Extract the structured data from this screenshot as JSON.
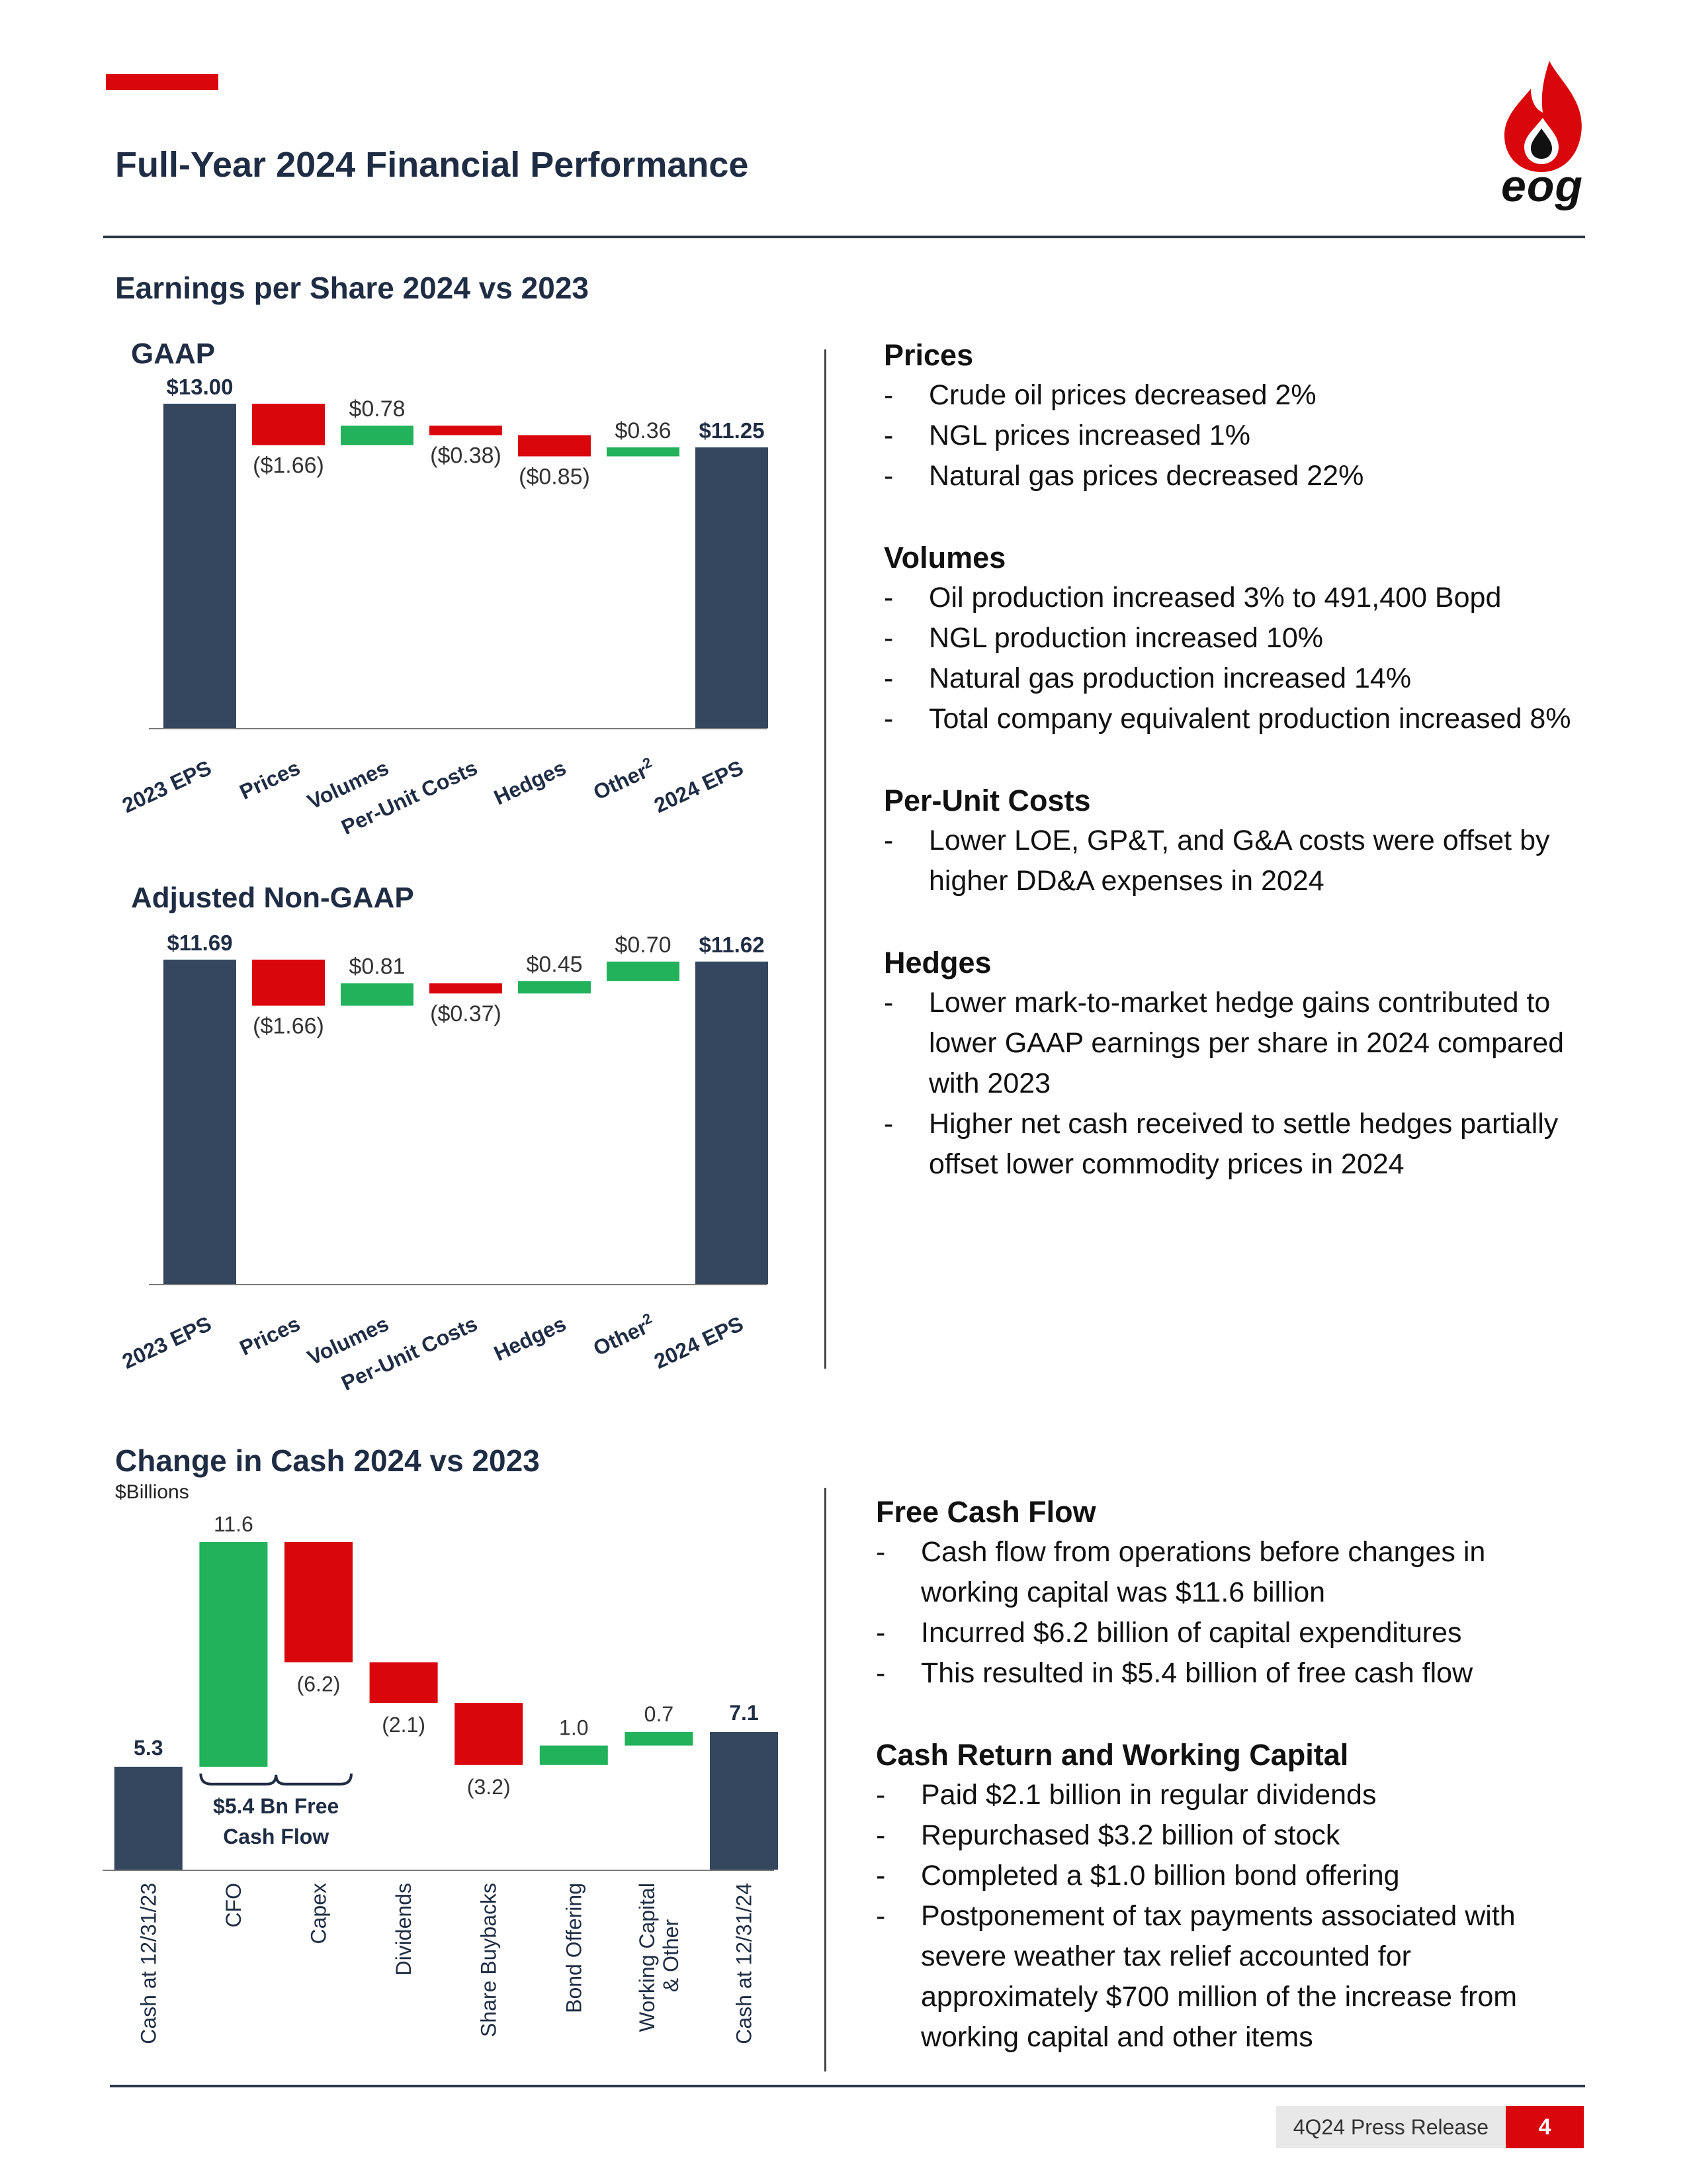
{
  "page": {
    "title": "Full-Year 2024 Financial Performance",
    "logo_text": "eog",
    "colors": {
      "accent": "#d9060c",
      "navy": "#34475f",
      "green": "#21b25b",
      "red": "#d9060c"
    }
  },
  "eps_section": {
    "title": "Earnings per Share 2024 vs 2023"
  },
  "cash_section": {
    "title": "Change in Cash 2024 vs 2023",
    "unit_note": "$Billions"
  },
  "chart_data": [
    {
      "type": "bar",
      "subtype": "waterfall",
      "title": "GAAP",
      "categories": [
        "2023 EPS",
        "Prices",
        "Volumes",
        "Per-Unit Costs",
        "Hedges",
        "Other",
        "2024 EPS"
      ],
      "other_superscript": "2",
      "values": [
        13.0,
        -1.66,
        0.78,
        -0.38,
        -0.85,
        0.36,
        11.25
      ],
      "data_labels": [
        "$13.00",
        "($1.66)",
        "$0.78",
        "($0.38)",
        "($0.85)",
        "$0.36",
        "$11.25"
      ],
      "ylim": [
        0,
        13.0
      ],
      "legend": "none"
    },
    {
      "type": "bar",
      "subtype": "waterfall",
      "title": "Adjusted Non-GAAP",
      "categories": [
        "2023 EPS",
        "Prices",
        "Volumes",
        "Per-Unit Costs",
        "Hedges",
        "Other",
        "2024 EPS"
      ],
      "other_superscript": "2",
      "values": [
        11.69,
        -1.66,
        0.81,
        -0.37,
        0.45,
        0.7,
        11.62
      ],
      "data_labels": [
        "$11.69",
        "($1.66)",
        "$0.81",
        "($0.37)",
        "$0.45",
        "$0.70",
        "$11.62"
      ],
      "ylim": [
        0,
        11.69
      ],
      "legend": "none"
    },
    {
      "type": "bar",
      "subtype": "waterfall",
      "title": "Change in Cash 2024 vs 2023",
      "ylabel": "$Billions",
      "categories": [
        "Cash at 12/31/23",
        "CFO",
        "Capex",
        "Dividends",
        "Share Buybacks",
        "Bond Offering",
        "Working Capital & Other",
        "Cash at 12/31/24"
      ],
      "values": [
        5.3,
        11.6,
        -6.2,
        -2.1,
        -3.2,
        1.0,
        0.7,
        7.1
      ],
      "data_labels": [
        "5.3",
        "11.6",
        "(6.2)",
        "(2.1)",
        "(3.2)",
        "1.0",
        "0.7",
        "7.1"
      ],
      "annotation": "$5.4 Bn Free Cash Flow",
      "ylim": [
        0,
        16.9
      ],
      "legend": "none"
    }
  ],
  "right_text_top": [
    {
      "heading": "Prices",
      "bullets": [
        "Crude oil prices decreased 2%",
        "NGL prices increased 1%",
        "Natural gas prices decreased 22%"
      ]
    },
    {
      "heading": "Volumes",
      "bullets": [
        "Oil production increased 3% to 491,400 Bopd",
        "NGL production increased 10%",
        "Natural gas production increased 14%",
        "Total company equivalent production increased 8%"
      ]
    },
    {
      "heading": "Per-Unit Costs",
      "bullets": [
        "Lower LOE, GP&T, and G&A costs were offset by higher DD&A expenses in 2024"
      ]
    },
    {
      "heading": "Hedges",
      "bullets": [
        "Lower mark-to-market hedge gains contributed to lower GAAP earnings per share in 2024 compared with 2023",
        "Higher net cash received to settle hedges partially offset lower commodity prices in 2024"
      ]
    }
  ],
  "right_text_bottom": [
    {
      "heading": "Free Cash Flow",
      "bullets": [
        "Cash flow from operations before changes in working capital was $11.6 billion",
        "Incurred $6.2 billion of capital expenditures",
        "This resulted in $5.4 billion of free cash flow"
      ]
    },
    {
      "heading": "Cash Return and Working Capital",
      "bullets": [
        "Paid $2.1 billion in regular dividends",
        "Repurchased $3.2 billion of stock",
        "Completed a $1.0 billion bond offering",
        "Postponement of tax payments associated with severe weather tax relief accounted for approximately $700 million of the increase from working capital and other items"
      ]
    }
  ],
  "footer": {
    "label": "4Q24 Press Release",
    "page_number": "4"
  }
}
